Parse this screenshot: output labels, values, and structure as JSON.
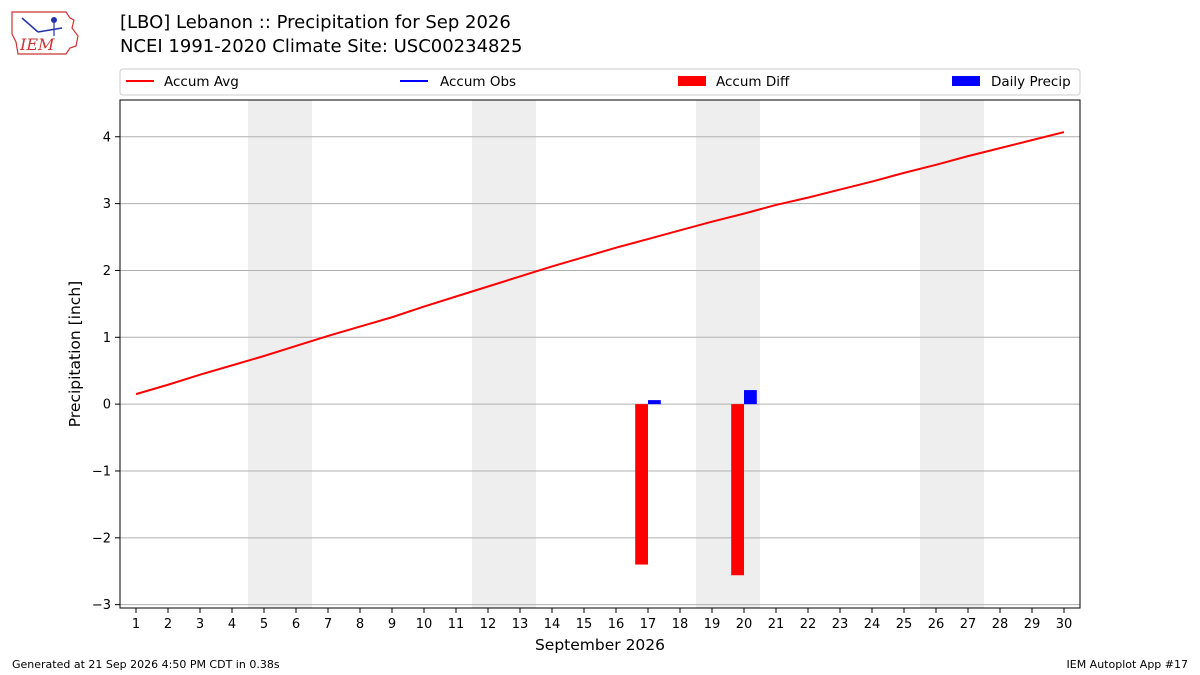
{
  "logo": {
    "text": "IEM",
    "icon": "iem-logo-icon"
  },
  "header": {
    "title_line1": "[LBO] Lebanon :: Precipitation for Sep 2026",
    "title_line2": "NCEI 1991-2020 Climate Site: USC00234825"
  },
  "footer": {
    "left": "Generated at 21 Sep 2026 4:50 PM CDT in 0.38s",
    "right": "IEM Autoplot App #17"
  },
  "chart_data": {
    "type": "bar",
    "xlabel": "September 2026",
    "ylabel": "Precipitation [inch]",
    "xlim": [
      0.5,
      30.5
    ],
    "ylim": [
      -3.05,
      4.55
    ],
    "yticks": [
      -3,
      -2,
      -1,
      0,
      1,
      2,
      3,
      4
    ],
    "xticks": [
      1,
      2,
      3,
      4,
      5,
      6,
      7,
      8,
      9,
      10,
      11,
      12,
      13,
      14,
      15,
      16,
      17,
      18,
      19,
      20,
      21,
      22,
      23,
      24,
      25,
      26,
      27,
      28,
      29,
      30
    ],
    "grid": "y",
    "legend_position": "top",
    "weekend_shading": [
      [
        5,
        6
      ],
      [
        12,
        13
      ],
      [
        19,
        20
      ],
      [
        26,
        27
      ]
    ],
    "colors": {
      "avg": "#ff0000",
      "obs": "#0000ff",
      "diff": "#ff0000",
      "daily": "#0000ff",
      "shade": "#eeeeee"
    },
    "legend": [
      {
        "label": "Accum Avg",
        "kind": "line",
        "color": "#ff0000"
      },
      {
        "label": "Accum Obs",
        "kind": "line",
        "color": "#0000ff"
      },
      {
        "label": "Accum Diff",
        "kind": "bar",
        "color": "#ff0000"
      },
      {
        "label": "Daily Precip",
        "kind": "bar",
        "color": "#0000ff"
      }
    ],
    "series": [
      {
        "name": "Accum Avg",
        "type": "line",
        "x": [
          1,
          2,
          3,
          4,
          5,
          6,
          7,
          8,
          9,
          10,
          11,
          12,
          13,
          14,
          15,
          16,
          17,
          18,
          19,
          20,
          21,
          22,
          23,
          24,
          25,
          26,
          27,
          28,
          29,
          30
        ],
        "values": [
          0.15,
          0.29,
          0.44,
          0.58,
          0.72,
          0.87,
          1.02,
          1.16,
          1.3,
          1.46,
          1.61,
          1.76,
          1.91,
          2.06,
          2.2,
          2.34,
          2.47,
          2.6,
          2.73,
          2.85,
          2.98,
          3.09,
          3.21,
          3.33,
          3.46,
          3.58,
          3.71,
          3.83,
          3.95,
          4.07
        ]
      },
      {
        "name": "Accum Diff",
        "type": "bar",
        "x": [
          17,
          20
        ],
        "values": [
          -2.4,
          -2.56
        ]
      },
      {
        "name": "Daily Precip",
        "type": "bar",
        "x": [
          17,
          20
        ],
        "values": [
          0.06,
          0.21
        ]
      }
    ]
  }
}
